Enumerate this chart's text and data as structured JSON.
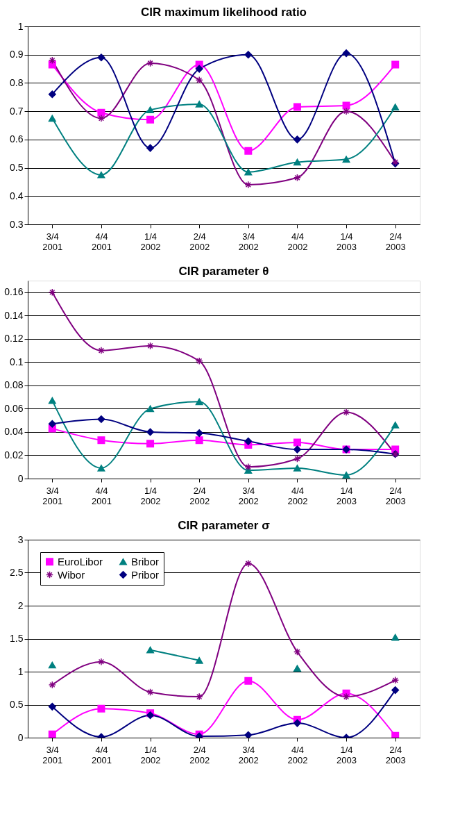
{
  "chart_data": [
    {
      "type": "line",
      "title": "CIR maximum likelihood ratio",
      "categories": [
        "3/4 2001",
        "4/4 2001",
        "1/4 2002",
        "2/4 2002",
        "3/4 2002",
        "4/4 2002",
        "1/4 2003",
        "2/4 2003"
      ],
      "ylim": [
        0.3,
        1
      ],
      "yticks": [
        0.3,
        0.4,
        0.5,
        0.6,
        0.7,
        0.8,
        0.9,
        1
      ],
      "grid": "y",
      "series": [
        {
          "color": "#ff00ff",
          "marker": "square",
          "values": [
            0.865,
            0.695,
            0.67,
            0.865,
            0.56,
            0.715,
            0.72,
            0.865
          ]
        },
        {
          "color": "#800080",
          "marker": "cross",
          "values": [
            0.88,
            0.675,
            0.87,
            0.81,
            0.44,
            0.465,
            0.7,
            0.52
          ]
        },
        {
          "color": "#008080",
          "marker": "triangle",
          "values": [
            0.675,
            0.475,
            0.705,
            0.725,
            0.485,
            0.52,
            0.53,
            0.715
          ]
        },
        {
          "color": "#000080",
          "marker": "diamond",
          "values": [
            0.76,
            0.89,
            0.57,
            0.85,
            0.9,
            0.6,
            0.905,
            0.515
          ]
        }
      ]
    },
    {
      "type": "line",
      "title": "CIR parameter θ",
      "categories": [
        "3/4 2001",
        "4/4 2001",
        "1/4 2002",
        "2/4 2002",
        "3/4 2002",
        "4/4 2002",
        "1/4 2003",
        "2/4 2003"
      ],
      "ylim": [
        0,
        0.17
      ],
      "yticks": [
        0,
        0.02,
        0.04,
        0.06,
        0.08,
        0.1,
        0.12,
        0.14,
        0.16
      ],
      "grid": "y",
      "series": [
        {
          "color": "#ff00ff",
          "marker": "square",
          "values": [
            0.043,
            0.033,
            0.03,
            0.033,
            0.029,
            0.031,
            0.025,
            0.025
          ]
        },
        {
          "color": "#800080",
          "marker": "cross",
          "values": [
            0.16,
            0.11,
            0.114,
            0.101,
            0.01,
            0.017,
            0.057,
            0.021
          ]
        },
        {
          "color": "#008080",
          "marker": "triangle",
          "values": [
            0.067,
            0.009,
            0.06,
            0.066,
            0.007,
            0.009,
            0.003,
            0.046
          ]
        },
        {
          "color": "#000080",
          "marker": "diamond",
          "values": [
            0.047,
            0.051,
            0.04,
            0.039,
            0.032,
            0.025,
            0.025,
            0.021
          ]
        }
      ]
    },
    {
      "type": "line",
      "title": "CIR parameter σ",
      "categories": [
        "3/4 2001",
        "4/4 2001",
        "1/4 2002",
        "2/4 2002",
        "3/4 2002",
        "4/4 2002",
        "1/4 2003",
        "2/4 2003"
      ],
      "ylim": [
        0,
        3
      ],
      "yticks": [
        0,
        0.5,
        1,
        1.5,
        2,
        2.5,
        3
      ],
      "grid": "y",
      "legend": "top left",
      "series": [
        {
          "name": "EuroLibor",
          "color": "#ff00ff",
          "marker": "square",
          "values": [
            0.05,
            0.44,
            0.37,
            0.05,
            0.86,
            0.27,
            0.67,
            0.03
          ]
        },
        {
          "name": "Wibor",
          "color": "#800080",
          "marker": "cross",
          "values": [
            0.8,
            1.15,
            0.69,
            0.62,
            2.64,
            1.3,
            0.62,
            0.87
          ]
        },
        {
          "name": "Bribor",
          "color": "#008080",
          "marker": "triangle",
          "values": [
            1.1,
            null,
            1.33,
            1.17,
            null,
            1.05,
            null,
            1.52
          ]
        },
        {
          "name": "Pribor",
          "color": "#000080",
          "marker": "diamond",
          "values": [
            0.47,
            0.01,
            0.34,
            0.02,
            0.04,
            0.22,
            0.0,
            0.72
          ]
        }
      ]
    }
  ]
}
